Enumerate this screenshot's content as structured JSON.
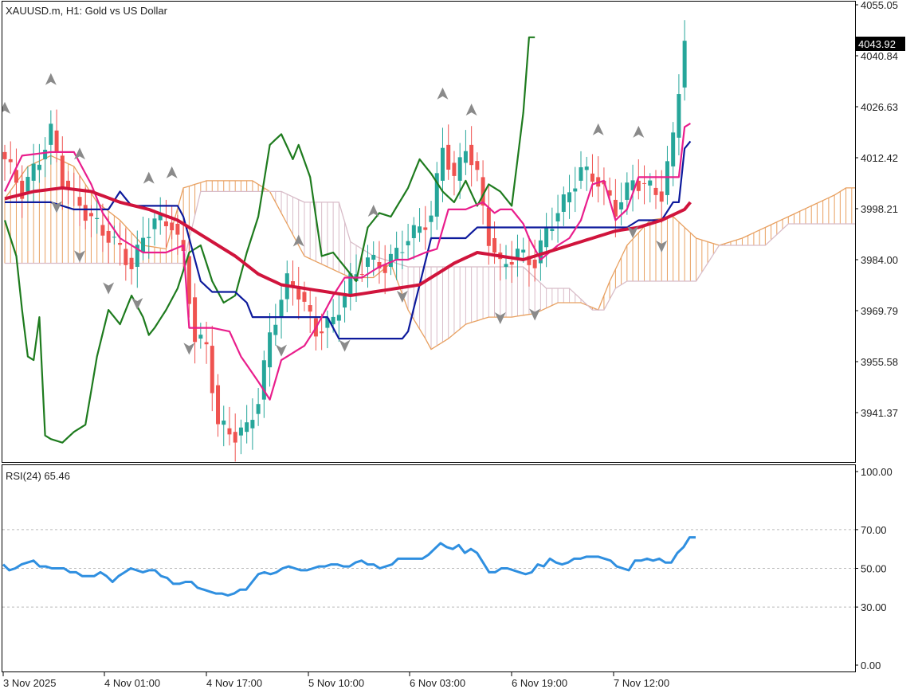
{
  "colors": {
    "background": "#ffffff",
    "frame": "#000000",
    "bull_candle": "#26a69a",
    "bear_candle": "#ef5350",
    "tenkan": "#e91e8c",
    "kijun": "#0d1a9c",
    "chikou": "#1e7b1e",
    "ma": "#d0143c",
    "kumo_bull": "#e8a060",
    "kumo_bear": "#d8bcc8",
    "rsi": "#2f8fe0",
    "fractal": "#8a8a8a",
    "current_price_bg": "#000000"
  },
  "chart_data": [
    {
      "type": "candlestick",
      "title": "XAUUSD.m, H1:  Gold vs US Dollar",
      "symbol": "XAUUSD.m",
      "timeframe": "H1",
      "description": "Gold vs US Dollar",
      "ylim": [
        3930.0,
        4055.05
      ],
      "y_ticks": [
        "4055.05",
        "4040.84",
        "4026.63",
        "4012.42",
        "3998.21",
        "3984.00",
        "3969.79",
        "3955.58",
        "3941.37"
      ],
      "current_price": "4043.92",
      "x_ticks": [
        "3 Nov 2025",
        "4 Nov 01:00",
        "4 Nov 17:00",
        "5 Nov 10:00",
        "6 Nov 03:00",
        "6 Nov 19:00",
        "7 Nov 12:00"
      ],
      "indicators": [
        "Ichimoku Kinko Hyo",
        "Moving Average",
        "Fractals"
      ],
      "grid": false
    },
    {
      "type": "line",
      "title": "RSI(24) 65.46",
      "indicator": "RSI",
      "period": 24,
      "last_value": 65.46,
      "ylim": [
        0,
        100
      ],
      "y_ticks": [
        "100.00",
        "70.00",
        "50.00",
        "30.00",
        "0.00"
      ],
      "levels": [
        70,
        50,
        30
      ],
      "values": [
        52,
        49,
        50,
        52,
        53,
        54,
        51,
        51,
        50,
        50,
        50,
        48,
        48,
        46,
        46,
        46,
        48,
        46,
        43,
        46,
        48,
        50,
        49,
        48,
        49,
        49,
        46,
        45,
        42,
        42,
        43,
        43,
        40,
        39,
        38,
        37,
        37,
        36,
        37,
        39,
        39,
        43,
        47,
        48,
        47,
        48,
        50,
        51,
        50,
        49,
        49,
        50,
        51,
        51,
        52,
        52,
        51,
        51,
        53,
        54,
        52,
        52,
        50,
        51,
        52,
        55,
        55,
        55,
        55,
        55,
        57,
        60,
        63,
        61,
        60,
        62,
        58,
        60,
        58,
        53,
        48,
        48,
        50,
        50,
        49,
        48,
        47,
        48,
        52,
        51,
        55,
        53,
        52,
        53,
        55,
        55,
        56,
        56,
        56,
        55,
        54,
        51,
        50,
        49,
        54,
        54,
        55,
        54,
        55,
        53,
        53,
        58,
        61,
        66,
        66
      ]
    }
  ]
}
